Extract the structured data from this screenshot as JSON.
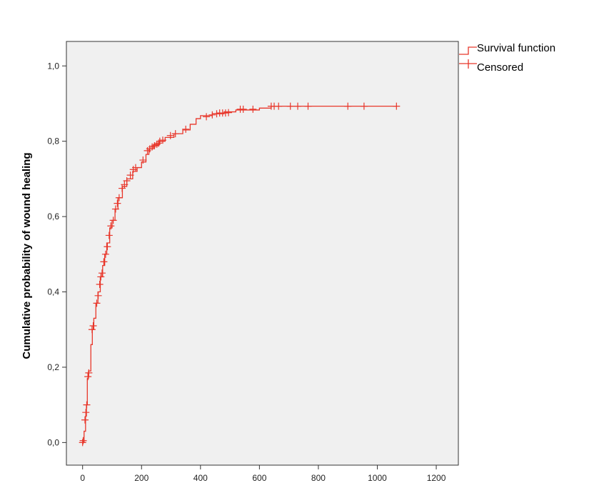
{
  "chart_data": {
    "type": "line",
    "title": "",
    "xlabel": "",
    "ylabel": "Cumulative probability of wound healing",
    "xlim": [
      -55,
      1275
    ],
    "ylim": [
      -0.06,
      1.065
    ],
    "x_ticks": [
      0,
      200,
      400,
      600,
      800,
      1000,
      1200
    ],
    "x_tick_labels": [
      "0",
      "200",
      "400",
      "600",
      "800",
      "1000",
      "1200"
    ],
    "y_ticks": [
      0.0,
      0.2,
      0.4,
      0.6,
      0.8,
      1.0
    ],
    "y_tick_labels": [
      "0,0",
      "0,2",
      "0,4",
      "0,6",
      "0,8",
      "1,0"
    ],
    "grid": false,
    "legend_position": "top-right-outside",
    "legend": [
      {
        "label": "Survival function",
        "symbol": "step-line"
      },
      {
        "label": "Censored",
        "symbol": "plus-marker"
      }
    ],
    "colors": {
      "series": "#e8372b",
      "plot_background": "#f0f0f0",
      "axis": "#333333"
    },
    "series": [
      {
        "step_points": [
          [
            0,
            0.0
          ],
          [
            5,
            0.03
          ],
          [
            10,
            0.07
          ],
          [
            13,
            0.1
          ],
          [
            16,
            0.17
          ],
          [
            20,
            0.19
          ],
          [
            28,
            0.26
          ],
          [
            33,
            0.3
          ],
          [
            38,
            0.33
          ],
          [
            45,
            0.37
          ],
          [
            52,
            0.4
          ],
          [
            60,
            0.44
          ],
          [
            68,
            0.47
          ],
          [
            75,
            0.5
          ],
          [
            82,
            0.53
          ],
          [
            92,
            0.57
          ],
          [
            100,
            0.59
          ],
          [
            110,
            0.62
          ],
          [
            120,
            0.65
          ],
          [
            135,
            0.68
          ],
          [
            150,
            0.7
          ],
          [
            170,
            0.72
          ],
          [
            185,
            0.73
          ],
          [
            200,
            0.745
          ],
          [
            215,
            0.765
          ],
          [
            225,
            0.78
          ],
          [
            240,
            0.79
          ],
          [
            260,
            0.8
          ],
          [
            280,
            0.81
          ],
          [
            310,
            0.82
          ],
          [
            340,
            0.83
          ],
          [
            365,
            0.845
          ],
          [
            385,
            0.86
          ],
          [
            400,
            0.868
          ],
          [
            440,
            0.873
          ],
          [
            480,
            0.878
          ],
          [
            520,
            0.883
          ],
          [
            600,
            0.888
          ],
          [
            640,
            0.893
          ],
          [
            1065,
            0.893
          ]
        ],
        "censored": [
          [
            0,
            0.0
          ],
          [
            2,
            0.005
          ],
          [
            8,
            0.06
          ],
          [
            11,
            0.08
          ],
          [
            14,
            0.1
          ],
          [
            18,
            0.175
          ],
          [
            21,
            0.185
          ],
          [
            32,
            0.3
          ],
          [
            36,
            0.31
          ],
          [
            48,
            0.37
          ],
          [
            53,
            0.39
          ],
          [
            58,
            0.42
          ],
          [
            62,
            0.44
          ],
          [
            66,
            0.45
          ],
          [
            72,
            0.48
          ],
          [
            78,
            0.5
          ],
          [
            84,
            0.52
          ],
          [
            90,
            0.55
          ],
          [
            96,
            0.575
          ],
          [
            104,
            0.59
          ],
          [
            112,
            0.62
          ],
          [
            118,
            0.635
          ],
          [
            124,
            0.65
          ],
          [
            134,
            0.675
          ],
          [
            142,
            0.685
          ],
          [
            150,
            0.695
          ],
          [
            162,
            0.71
          ],
          [
            172,
            0.725
          ],
          [
            180,
            0.73
          ],
          [
            205,
            0.75
          ],
          [
            220,
            0.775
          ],
          [
            228,
            0.78
          ],
          [
            236,
            0.785
          ],
          [
            244,
            0.788
          ],
          [
            252,
            0.792
          ],
          [
            258,
            0.795
          ],
          [
            262,
            0.8
          ],
          [
            272,
            0.803
          ],
          [
            298,
            0.815
          ],
          [
            315,
            0.82
          ],
          [
            350,
            0.832
          ],
          [
            420,
            0.865
          ],
          [
            440,
            0.87
          ],
          [
            455,
            0.873
          ],
          [
            465,
            0.875
          ],
          [
            475,
            0.875
          ],
          [
            485,
            0.875
          ],
          [
            495,
            0.876
          ],
          [
            535,
            0.885
          ],
          [
            545,
            0.885
          ],
          [
            578,
            0.885
          ],
          [
            640,
            0.893
          ],
          [
            650,
            0.893
          ],
          [
            665,
            0.893
          ],
          [
            705,
            0.893
          ],
          [
            730,
            0.893
          ],
          [
            765,
            0.893
          ],
          [
            900,
            0.893
          ],
          [
            955,
            0.893
          ],
          [
            1065,
            0.893
          ]
        ]
      }
    ]
  }
}
